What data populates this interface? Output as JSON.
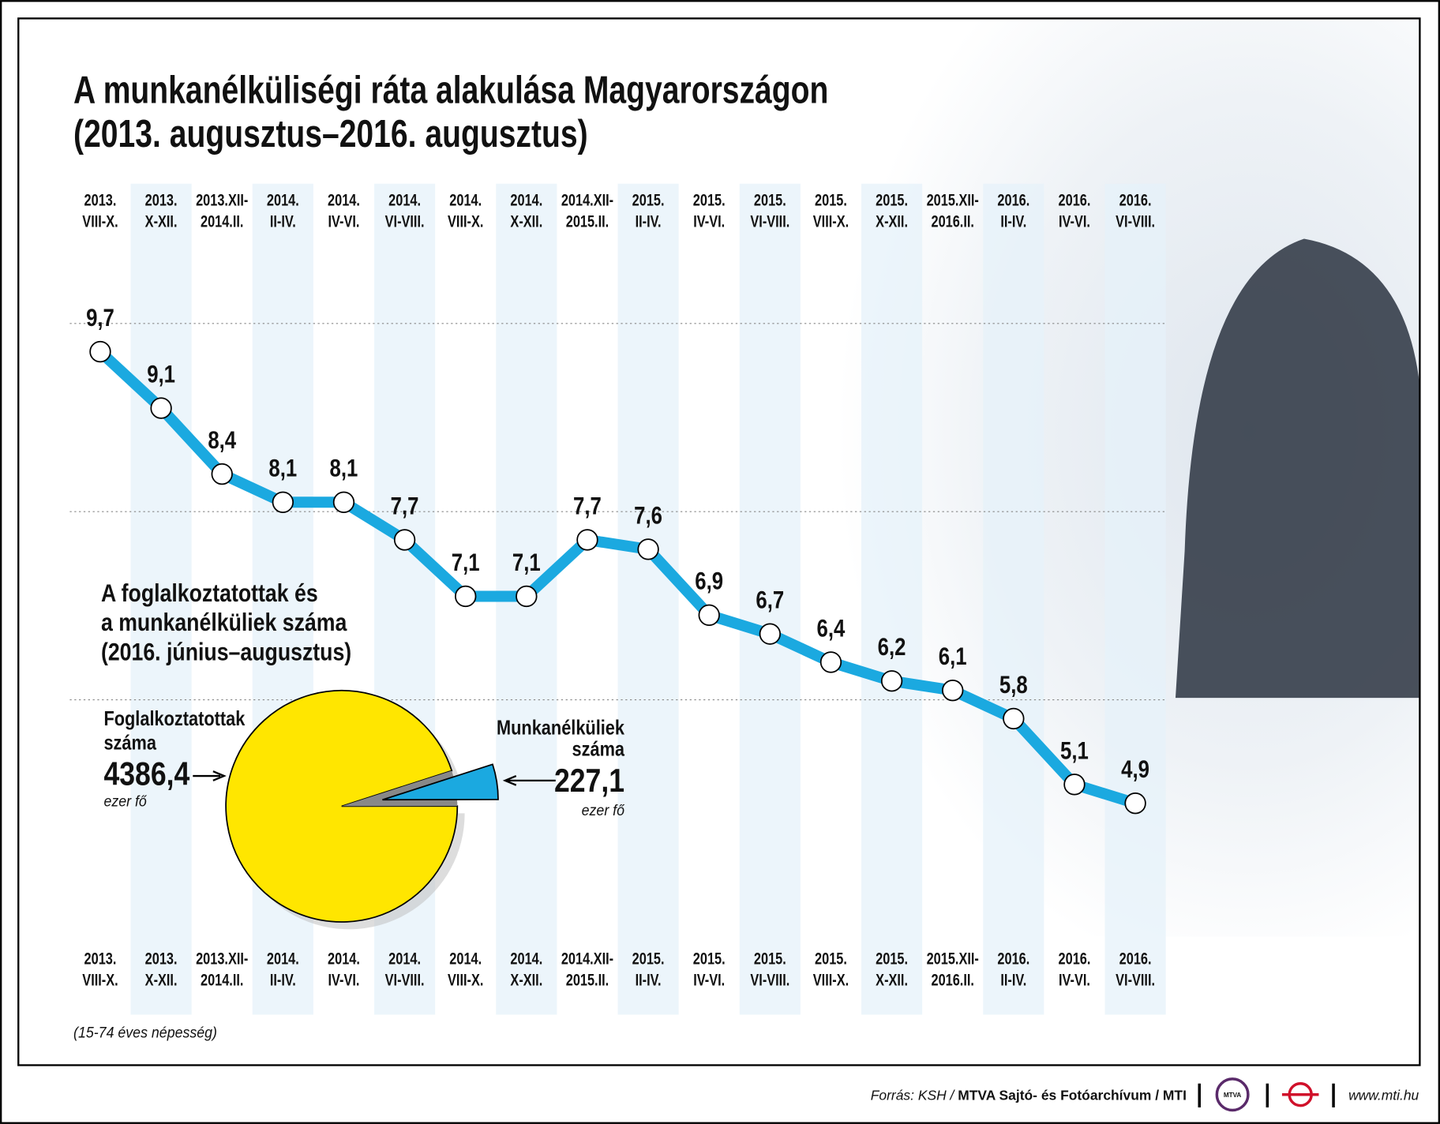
{
  "chart_data": [
    {
      "type": "line",
      "title": "A munkanélküliségi ráta alakulása Magyarországon\n(2013. augusztus–2016. augusztus)",
      "categories": [
        "2013.\nVIII-X.",
        "2013.\nX-XII.",
        "2013.XII-\n2014.II.",
        "2014.\nII-IV.",
        "2014.\nIV-VI.",
        "2014.\nVI-VIII.",
        "2014.\nVIII-X.",
        "2014.\nX-XII.",
        "2014.XII-\n2015.II.",
        "2015.\nII-IV.",
        "2015.\nIV-VI.",
        "2015.\nVI-VIII.",
        "2015.\nVIII-X.",
        "2015.\nX-XII.",
        "2015.XII-\n2016.II.",
        "2016.\nII-IV.",
        "2016.\nIV-VI.",
        "2016.\nVI-VIII."
      ],
      "values": [
        9.7,
        9.1,
        8.4,
        8.1,
        8.1,
        7.7,
        7.1,
        7.1,
        7.7,
        7.6,
        6.9,
        6.7,
        6.4,
        6.2,
        6.1,
        5.8,
        5.1,
        4.9
      ],
      "value_labels": [
        "9,7",
        "9,1",
        "8,4",
        "8,1",
        "8,1",
        "7,7",
        "7,1",
        "7,1",
        "7,7",
        "7,6",
        "6,9",
        "6,7",
        "6,4",
        "6,2",
        "6,1",
        "5,8",
        "5,1",
        "4,9"
      ],
      "color": "#1ba9e0",
      "ylim": [
        4,
        10.5
      ],
      "yticks": [
        6,
        8,
        10
      ],
      "grid": true,
      "note": "(15-74 éves népesség)"
    },
    {
      "type": "pie",
      "title": "A foglalkoztatottak és\na munkanélküliek száma\n(2016. június–augusztus)",
      "categories": [
        "Foglalkoztatottak\nszáma",
        "Munkanélküliek\nszáma"
      ],
      "values": [
        4386.4,
        227.1
      ],
      "value_labels": [
        "4386,4",
        "227,1"
      ],
      "colors": [
        "#ffe600",
        "#1ba9e0"
      ],
      "unit": "ezer fő"
    }
  ],
  "footer": {
    "source_prefix": "Forrás: KSH /",
    "source": "MTVA Sajtó- és Fotóarchívum / MTI",
    "logo": "MTVA",
    "url": "www.mti.hu"
  }
}
